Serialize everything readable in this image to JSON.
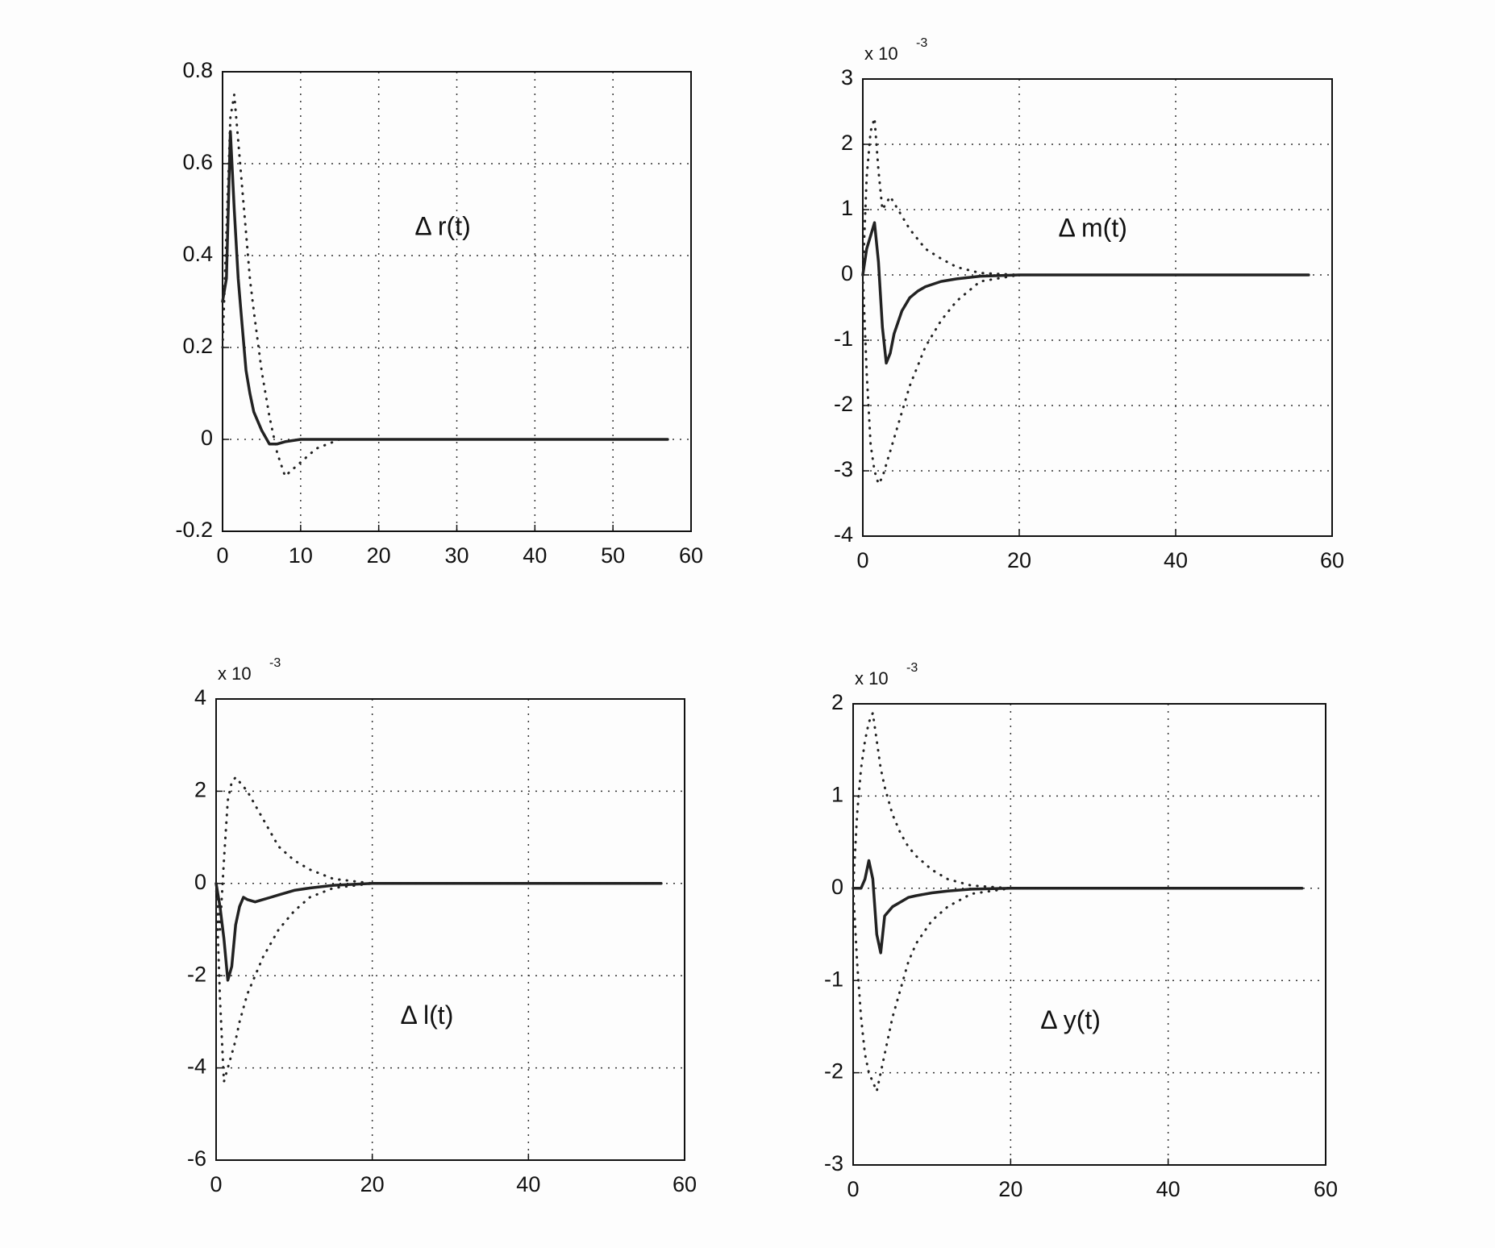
{
  "chart_data": [
    {
      "type": "line",
      "annotation": "Δ r(t)",
      "x": [
        0,
        0.5,
        1,
        1.5,
        2,
        2.5,
        3,
        3.5,
        4,
        5,
        6,
        7,
        8,
        10,
        12,
        15,
        20,
        30,
        40,
        57
      ],
      "series": [
        {
          "color": "#222222",
          "style": "solid",
          "values": [
            0.3,
            0.35,
            0.67,
            0.5,
            0.35,
            0.25,
            0.15,
            0.1,
            0.06,
            0.02,
            -0.01,
            -0.01,
            -0.005,
            0,
            0,
            0,
            0,
            0,
            0,
            0
          ]
        },
        {
          "color": "#222222",
          "style": "dotted",
          "values": [
            0.2,
            0.45,
            0.7,
            0.75,
            0.65,
            0.55,
            0.45,
            0.35,
            0.28,
            0.15,
            0.05,
            -0.03,
            -0.08,
            -0.05,
            -0.02,
            0,
            0,
            0,
            0,
            0
          ]
        }
      ],
      "xlim": [
        0,
        60
      ],
      "xticks": [
        0,
        10,
        20,
        30,
        40,
        50,
        60
      ],
      "ylim": [
        -0.2,
        0.8
      ],
      "yticks": [
        -0.2,
        0,
        0.2,
        0.4,
        0.6,
        0.8
      ],
      "grid": true
    },
    {
      "type": "line",
      "annotation": "Δ m(t)",
      "exponent_base": "x 10",
      "exponent": "-3",
      "x": [
        0,
        0.5,
        1,
        1.5,
        2,
        2.5,
        3,
        3.5,
        4,
        5,
        6,
        7,
        8,
        10,
        12,
        15,
        20,
        30,
        40,
        57
      ],
      "series": [
        {
          "color": "#222222",
          "style": "solid",
          "values": [
            0,
            0.4,
            0.6,
            0.8,
            0.2,
            -0.8,
            -1.35,
            -1.2,
            -0.9,
            -0.55,
            -0.35,
            -0.25,
            -0.18,
            -0.1,
            -0.06,
            -0.02,
            0,
            0,
            0,
            0
          ]
        },
        {
          "color": "#222222",
          "style": "dotted",
          "values": [
            0,
            1.5,
            2.2,
            2.4,
            1.6,
            1.0,
            1.1,
            1.2,
            1.1,
            0.9,
            0.7,
            0.55,
            0.4,
            0.25,
            0.12,
            0.03,
            0,
            0,
            0,
            0
          ]
        },
        {
          "color": "#222222",
          "style": "dotted",
          "values": [
            0,
            -1.5,
            -2.6,
            -3.0,
            -3.2,
            -3.1,
            -2.9,
            -2.7,
            -2.5,
            -2.1,
            -1.7,
            -1.4,
            -1.1,
            -0.7,
            -0.4,
            -0.1,
            0,
            0,
            0,
            0
          ]
        }
      ],
      "xlim": [
        0,
        60
      ],
      "xticks": [
        0,
        20,
        40,
        60
      ],
      "ylim": [
        -4,
        3
      ],
      "yticks": [
        -4,
        -3,
        -2,
        -1,
        0,
        1,
        2,
        3
      ],
      "grid": true
    },
    {
      "type": "line",
      "annotation": "Δ l(t)",
      "exponent_base": "x 10",
      "exponent": "-3",
      "x": [
        0,
        0.5,
        1,
        1.5,
        2,
        2.5,
        3,
        3.5,
        4,
        5,
        6,
        7,
        8,
        10,
        12,
        15,
        20,
        30,
        40,
        57
      ],
      "series": [
        {
          "color": "#222222",
          "style": "solid",
          "values": [
            0,
            -0.5,
            -1.2,
            -2.1,
            -1.8,
            -0.9,
            -0.5,
            -0.3,
            -0.35,
            -0.4,
            -0.35,
            -0.3,
            -0.25,
            -0.15,
            -0.1,
            -0.04,
            0,
            0,
            0,
            0
          ]
        },
        {
          "color": "#222222",
          "style": "dotted",
          "values": [
            0,
            -1,
            0.5,
            1.8,
            2.2,
            2.3,
            2.2,
            2.1,
            2.0,
            1.7,
            1.4,
            1.1,
            0.8,
            0.5,
            0.3,
            0.1,
            0,
            0,
            0,
            0
          ]
        },
        {
          "color": "#222222",
          "style": "dotted",
          "values": [
            0,
            -2.5,
            -4.3,
            -4.0,
            -3.7,
            -3.4,
            -3.0,
            -2.7,
            -2.4,
            -2.0,
            -1.6,
            -1.3,
            -1.0,
            -0.6,
            -0.3,
            -0.1,
            0,
            0,
            0,
            0
          ]
        }
      ],
      "xlim": [
        0,
        60
      ],
      "xticks": [
        0,
        20,
        40,
        60
      ],
      "ylim": [
        -6,
        4
      ],
      "yticks": [
        -6,
        -4,
        -2,
        0,
        2,
        4
      ],
      "grid": true
    },
    {
      "type": "line",
      "annotation": "Δ y(t)",
      "exponent_base": "x 10",
      "exponent": "-3",
      "x": [
        0,
        0.5,
        1,
        1.5,
        2,
        2.5,
        3,
        3.5,
        4,
        5,
        6,
        7,
        8,
        10,
        12,
        15,
        20,
        30,
        40,
        57
      ],
      "series": [
        {
          "color": "#222222",
          "style": "solid",
          "values": [
            0,
            0,
            0,
            0.1,
            0.3,
            0.1,
            -0.5,
            -0.7,
            -0.3,
            -0.2,
            -0.15,
            -0.1,
            -0.08,
            -0.05,
            -0.03,
            -0.01,
            0,
            0,
            0,
            0
          ]
        },
        {
          "color": "#222222",
          "style": "dotted",
          "values": [
            0,
            0.8,
            1.3,
            1.6,
            1.8,
            1.9,
            1.6,
            1.3,
            1.1,
            0.8,
            0.6,
            0.45,
            0.35,
            0.2,
            0.1,
            0.03,
            0,
            0,
            0,
            0
          ]
        },
        {
          "color": "#222222",
          "style": "dotted",
          "values": [
            0,
            -0.8,
            -1.4,
            -1.8,
            -2.0,
            -2.1,
            -2.2,
            -2.0,
            -1.8,
            -1.4,
            -1.1,
            -0.8,
            -0.6,
            -0.35,
            -0.2,
            -0.06,
            0,
            0,
            0,
            0
          ]
        }
      ],
      "xlim": [
        0,
        60
      ],
      "xticks": [
        0,
        20,
        40,
        60
      ],
      "ylim": [
        -3,
        2
      ],
      "yticks": [
        -3,
        -2,
        -1,
        0,
        1,
        2
      ],
      "grid": true
    }
  ]
}
